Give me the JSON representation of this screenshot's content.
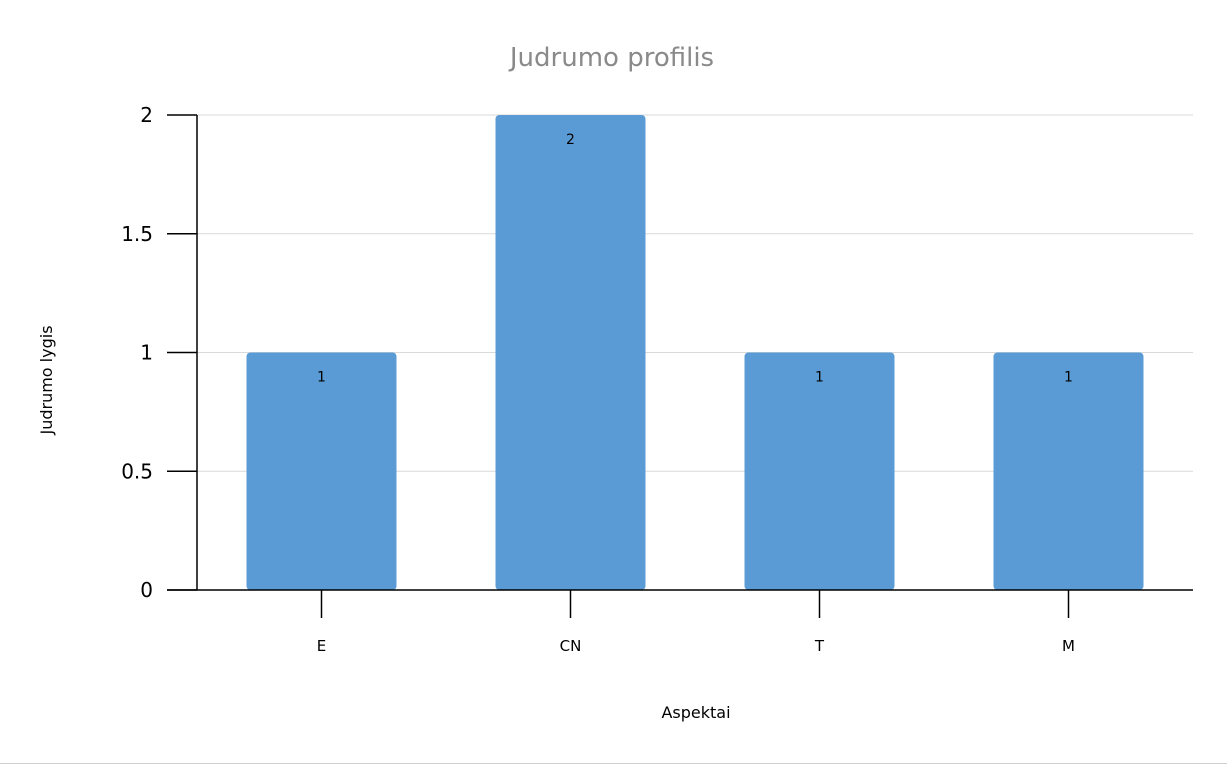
{
  "chart_data": {
    "type": "bar",
    "title": "Judrumo profilis",
    "xlabel": "Aspektai",
    "ylabel": "Judrumo lygis",
    "categories": [
      "E",
      "CN",
      "T",
      "M"
    ],
    "values": [
      1,
      2,
      1,
      1
    ],
    "data_labels": [
      "1",
      "2",
      "1",
      "1"
    ],
    "ylim": [
      0,
      2
    ],
    "yticks": [
      0,
      0.5,
      1,
      1.5,
      2
    ],
    "ytick_labels": [
      "0",
      "0.5",
      "1",
      "1.5",
      "2"
    ],
    "grid": true,
    "legend": "none",
    "bar_color": "#5b9bd5",
    "grid_color": "#d9d9d9",
    "title_color": "#8a8a8a"
  }
}
